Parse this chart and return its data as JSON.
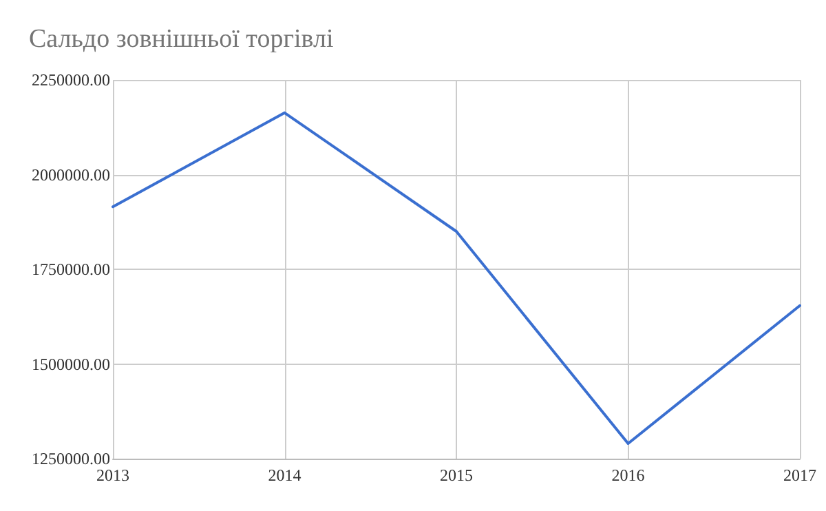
{
  "chart_data": {
    "type": "line",
    "title": "Сальдо зовнішньої торгівлі",
    "categories": [
      "2013",
      "2014",
      "2015",
      "2016",
      "2017"
    ],
    "series": [
      {
        "color": "#3a6fd0",
        "values": [
          1915000,
          2163000,
          1850000,
          1290000,
          1654000
        ]
      }
    ],
    "ylim": [
      1250000,
      2250000
    ],
    "yticks": [
      {
        "value": 1250000,
        "label": "1250000.00"
      },
      {
        "value": 1500000,
        "label": "1500000.00"
      },
      {
        "value": 1750000,
        "label": "1750000.00"
      },
      {
        "value": 2000000,
        "label": "2000000.00"
      },
      {
        "value": 2250000,
        "label": "2250000.00"
      }
    ],
    "grid": true,
    "marker": "none",
    "line_style": "solid"
  }
}
